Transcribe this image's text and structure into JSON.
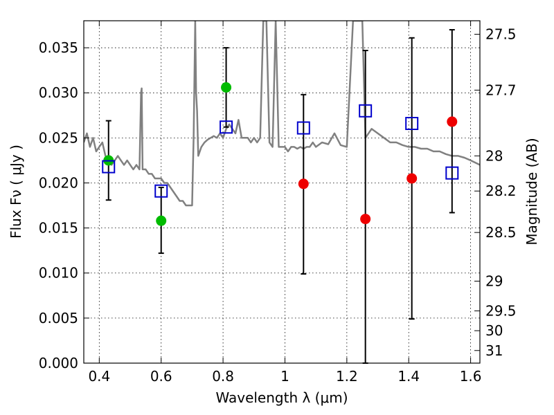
{
  "chart_data": {
    "type": "scatter",
    "xlabel": "Wavelength  λ (μm)",
    "ylabel": "Flux  Fν  ( μJy )",
    "y2label": "Magnitude (AB)",
    "xlim": [
      0.35,
      1.63
    ],
    "ylim": [
      0.0,
      0.038
    ],
    "grid": true,
    "x_ticks": [
      0.4,
      0.6,
      0.8,
      1.0,
      1.2,
      1.4,
      1.6
    ],
    "x_tick_labels": [
      "0.4",
      "0.6",
      "0.8",
      "1",
      "1.2",
      "1.4",
      "1.6"
    ],
    "y_ticks": [
      0.0,
      0.005,
      0.01,
      0.015,
      0.02,
      0.025,
      0.03,
      0.035
    ],
    "y_tick_labels": [
      "0.000",
      "0.005",
      "0.010",
      "0.015",
      "0.020",
      "0.025",
      "0.030",
      "0.035"
    ],
    "y2_ticks": [
      {
        "label": "27.5",
        "flux": 0.0365
      },
      {
        "label": "27.7",
        "flux": 0.0303
      },
      {
        "label": "28",
        "flux": 0.023
      },
      {
        "label": "28.2",
        "flux": 0.0191
      },
      {
        "label": "28.5",
        "flux": 0.0145
      },
      {
        "label": "29",
        "flux": 0.0091
      },
      {
        "label": "29.5",
        "flux": 0.0058
      },
      {
        "label": "30",
        "flux": 0.0036
      },
      {
        "label": "31",
        "flux": 0.0014
      }
    ],
    "colors": {
      "model_spectrum": "#808080",
      "green_points": "#00bb00",
      "red_points": "#ee0000",
      "blue_squares": "#0000cc",
      "errorbars": "#000000"
    },
    "series": [
      {
        "kind": "line",
        "x": [
          0.35,
          0.36,
          0.37,
          0.38,
          0.39,
          0.4,
          0.41,
          0.42,
          0.43,
          0.44,
          0.45,
          0.46,
          0.47,
          0.48,
          0.49,
          0.5,
          0.51,
          0.52,
          0.53,
          0.535,
          0.537,
          0.54,
          0.55,
          0.56,
          0.57,
          0.58,
          0.59,
          0.6,
          0.61,
          0.62,
          0.63,
          0.64,
          0.65,
          0.66,
          0.67,
          0.68,
          0.69,
          0.7,
          0.705,
          0.71,
          0.713,
          0.716,
          0.72,
          0.73,
          0.74,
          0.75,
          0.76,
          0.77,
          0.78,
          0.79,
          0.8,
          0.81,
          0.82,
          0.83,
          0.84,
          0.85,
          0.86,
          0.87,
          0.88,
          0.89,
          0.9,
          0.91,
          0.92,
          0.93,
          0.94,
          0.95,
          0.96,
          0.97,
          0.98,
          0.99,
          1.0,
          1.01,
          1.02,
          1.03,
          1.04,
          1.05,
          1.06,
          1.07,
          1.08,
          1.09,
          1.1,
          1.12,
          1.14,
          1.16,
          1.18,
          1.2,
          1.22,
          1.24,
          1.25,
          1.26,
          1.28,
          1.3,
          1.32,
          1.34,
          1.36,
          1.38,
          1.4,
          1.42,
          1.44,
          1.46,
          1.48,
          1.5,
          1.52,
          1.54,
          1.56,
          1.58,
          1.6,
          1.63
        ],
        "y": [
          0.0245,
          0.0255,
          0.024,
          0.025,
          0.0235,
          0.024,
          0.0245,
          0.023,
          0.0225,
          0.022,
          0.0225,
          0.023,
          0.0225,
          0.022,
          0.0225,
          0.022,
          0.0215,
          0.022,
          0.0215,
          0.03,
          0.0305,
          0.0215,
          0.0215,
          0.021,
          0.021,
          0.0205,
          0.0205,
          0.0205,
          0.02,
          0.02,
          0.0195,
          0.019,
          0.0185,
          0.018,
          0.018,
          0.0175,
          0.0175,
          0.0175,
          0.025,
          0.038,
          0.03,
          0.028,
          0.023,
          0.024,
          0.0245,
          0.0248,
          0.025,
          0.0252,
          0.025,
          0.0255,
          0.025,
          0.026,
          0.0265,
          0.026,
          0.0255,
          0.027,
          0.025,
          0.025,
          0.025,
          0.0245,
          0.025,
          0.0245,
          0.025,
          0.038,
          0.038,
          0.0245,
          0.024,
          0.038,
          0.024,
          0.024,
          0.024,
          0.0235,
          0.024,
          0.024,
          0.0238,
          0.024,
          0.0238,
          0.024,
          0.024,
          0.0245,
          0.024,
          0.0245,
          0.0243,
          0.0255,
          0.0242,
          0.024,
          0.038,
          0.038,
          0.038,
          0.025,
          0.026,
          0.0255,
          0.025,
          0.0245,
          0.0245,
          0.0242,
          0.024,
          0.024,
          0.0238,
          0.0238,
          0.0235,
          0.0235,
          0.0232,
          0.023,
          0.023,
          0.0228,
          0.0225,
          0.022
        ]
      },
      {
        "kind": "points",
        "marker": "circle-green",
        "x": [
          0.43,
          0.6,
          0.81
        ],
        "y": [
          0.0225,
          0.0158,
          0.0306
        ]
      },
      {
        "kind": "points",
        "marker": "circle-red",
        "x": [
          1.06,
          1.26,
          1.41,
          1.54
        ],
        "y": [
          0.0199,
          0.016,
          0.0205,
          0.0268
        ]
      },
      {
        "kind": "points",
        "marker": "square-blue",
        "x": [
          0.43,
          0.6,
          0.81,
          1.06,
          1.26,
          1.41,
          1.54
        ],
        "y": [
          0.0218,
          0.0191,
          0.0262,
          0.0261,
          0.028,
          0.0266,
          0.0211
        ]
      },
      {
        "kind": "errorbars",
        "x": [
          0.43,
          0.6,
          0.81,
          1.06,
          1.26,
          1.41,
          1.54
        ],
        "low": [
          0.0181,
          0.0122,
          0.0262,
          0.0099,
          0.0,
          0.0049,
          0.0167
        ],
        "high": [
          0.0269,
          0.0195,
          0.035,
          0.0298,
          0.0347,
          0.0361,
          0.037
        ]
      }
    ]
  }
}
